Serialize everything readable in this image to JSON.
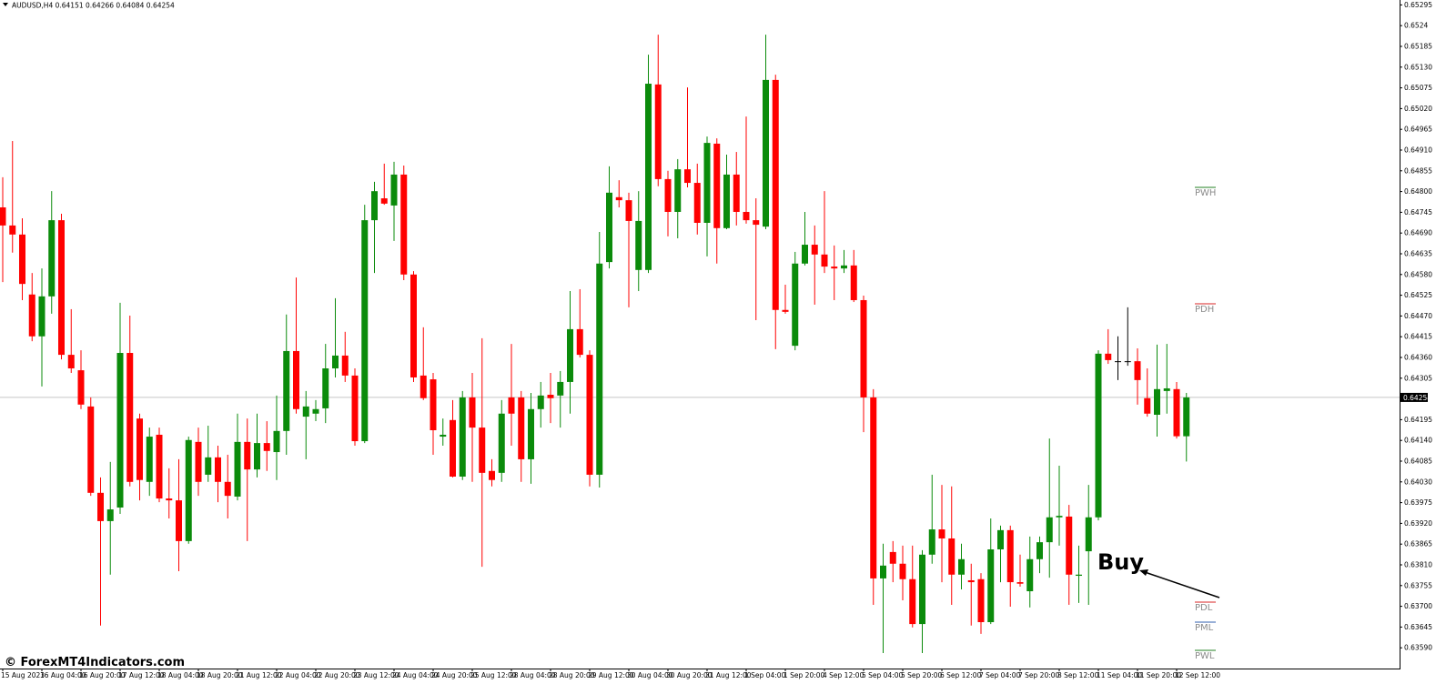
{
  "chart_data": {
    "type": "candlestick",
    "title": "AUDUSD,H4  0.64151 0.64266 0.64084 0.64254",
    "watermark": "© ForexMT4Indicators.com",
    "annotation": "Buy",
    "up_color": "#0b8b0b",
    "down_color": "#ff0000",
    "flat_color": "#000000",
    "grid": false,
    "current_price": 0.64254,
    "levels": [
      {
        "text": "PWH",
        "color": "#4f9a4f"
      },
      {
        "text": "PDH",
        "color": "#e05050"
      },
      {
        "text": "PDL",
        "color": "#e05050"
      },
      {
        "text": "PML",
        "color": "#5a7fbf"
      },
      {
        "text": "PWL",
        "color": "#4f9a4f"
      }
    ],
    "ylim": [
      0.63535,
      0.65308
    ],
    "yticks": [
      0.65295,
      0.6524,
      0.65185,
      {
        "value": 0.6513,
        "label": "0.65130"
      },
      0.65075,
      {
        "value": 0.6502,
        "label": "0.65020"
      },
      0.64965,
      {
        "value": 0.6491,
        "label": "0.64910"
      },
      0.64855,
      {
        "value": 0.648,
        "label": "0.64800"
      },
      0.64745,
      {
        "value": 0.6469,
        "label": "0.64690"
      },
      0.64635,
      {
        "value": 0.6458,
        "label": "0.64580"
      },
      0.64525,
      {
        "value": 0.6447,
        "label": "0.64470"
      },
      0.64415,
      {
        "value": 0.6436,
        "label": "0.64360"
      },
      0.64305,
      0.64195,
      {
        "value": 0.6414,
        "label": "0.64140"
      },
      0.64085,
      {
        "value": 0.6403,
        "label": "0.64030"
      },
      0.63975,
      {
        "value": 0.6392,
        "label": "0.63920"
      },
      0.63865,
      {
        "value": 0.6381,
        "label": "0.63810"
      },
      0.63755,
      {
        "value": 0.637,
        "label": "0.63700"
      },
      0.63645,
      {
        "value": 0.6359,
        "label": "0.63590"
      }
    ],
    "categories": [
      "15 Aug 2023",
      null,
      null,
      null,
      "16 Aug 04:00",
      null,
      null,
      null,
      "16 Aug 20:00",
      null,
      null,
      null,
      "17 Aug 12:00",
      null,
      null,
      null,
      "18 Aug 04:00",
      null,
      null,
      null,
      "18 Aug 20:00",
      null,
      null,
      null,
      "21 Aug 12:00",
      null,
      null,
      null,
      "22 Aug 04:00",
      null,
      null,
      null,
      "22 Aug 20:00",
      null,
      null,
      null,
      "23 Aug 12:00",
      null,
      null,
      null,
      "24 Aug 04:00",
      null,
      null,
      null,
      "24 Aug 20:00",
      null,
      null,
      null,
      "25 Aug 12:00",
      null,
      null,
      null,
      "28 Aug 04:00",
      null,
      null,
      null,
      "28 Aug 20:00",
      null,
      null,
      null,
      "29 Aug 12:00",
      null,
      null,
      null,
      "30 Aug 04:00",
      null,
      null,
      null,
      "30 Aug 20:00",
      null,
      null,
      null,
      "31 Aug 12:00",
      null,
      null,
      null,
      "1 Sep 04:00",
      null,
      null,
      null,
      "1 Sep 20:00",
      null,
      null,
      null,
      "4 Sep 12:00",
      null,
      null,
      null,
      "5 Sep 04:00",
      null,
      null,
      null,
      "5 Sep 20:00",
      null,
      null,
      null,
      "6 Sep 12:00",
      null,
      null,
      null,
      "7 Sep 04:00",
      null,
      null,
      null,
      "7 Sep 20:00",
      null,
      null,
      null,
      "8 Sep 12:00",
      null,
      null,
      null,
      "11 Sep 04:00",
      null,
      null,
      null,
      "11 Sep 20:00",
      null,
      null,
      null,
      "12 Sep 12:00",
      null
    ],
    "open": [
      0.64758,
      0.6471,
      0.64686,
      0.64527,
      0.64416,
      0.64522,
      0.64724,
      0.64367,
      0.64326,
      0.6423,
      0.64001,
      0.63926,
      0.63962,
      0.64372,
      0.64198,
      0.6403,
      0.64155,
      0.63986,
      0.63981,
      0.63873,
      0.64136,
      0.64049,
      0.64095,
      0.6403,
      0.63991,
      0.64136,
      0.64063,
      0.64133,
      0.64109,
      0.64165,
      0.64377,
      0.64203,
      0.64211,
      0.64225,
      0.64331,
      0.64365,
      0.64312,
      0.64138,
      0.64724,
      0.64782,
      0.64763,
      0.64845,
      0.6458,
      0.64312,
      0.64302,
      0.6415,
      0.64194,
      0.64044,
      0.64254,
      0.64174,
      0.64059,
      0.64054,
      0.64254,
      0.64254,
      0.6409,
      0.64223,
      0.64261,
      0.64259,
      0.64295,
      0.64435,
      0.64367,
      0.64049,
      0.64613,
      0.64785,
      0.64777,
      0.64592,
      0.64592,
      0.65084,
      0.64833,
      0.64746,
      0.64859,
      0.64823,
      0.64717,
      0.64927,
      0.64703,
      0.64845,
      0.64746,
      0.64724,
      0.64707,
      0.65096,
      0.64486,
      0.64391,
      0.64609,
      0.64659,
      0.64633,
      0.64601,
      0.64596,
      0.64604,
      0.64512,
      0.64254,
      0.63774,
      0.63844,
      0.63813,
      0.63772,
      0.63653,
      0.63837,
      0.63904,
      0.6388,
      0.63784,
      0.63769,
      0.63772,
      0.63658,
      0.63851,
      0.63902,
      0.63764,
      0.6374,
      0.63825,
      0.6387,
      0.63936,
      0.63938,
      0.63781,
      0.63846,
      0.63936,
      0.6437,
      0.6435,
      0.6435,
      0.6435,
      0.64252,
      0.64208,
      0.64271,
      0.64276,
      0.64151
    ],
    "high": [
      0.64838,
      0.64934,
      0.64729,
      0.64584,
      0.64596,
      0.64801,
      0.64741,
      0.64488,
      0.64379,
      0.64254,
      0.64042,
      0.64083,
      0.64505,
      0.64471,
      0.64211,
      0.64174,
      0.64174,
      0.64066,
      0.6409,
      0.6415,
      0.64174,
      0.64179,
      0.64126,
      0.64102,
      0.64211,
      0.64198,
      0.64211,
      0.64191,
      0.64259,
      0.64474,
      0.64572,
      0.64271,
      0.64247,
      0.64396,
      0.64517,
      0.64428,
      0.64331,
      0.64765,
      0.64826,
      0.64874,
      0.64879,
      0.64869,
      0.64589,
      0.6444,
      0.64319,
      0.64198,
      0.64247,
      0.64271,
      0.64319,
      0.64411,
      0.6409,
      0.64247,
      0.64396,
      0.64271,
      0.64266,
      0.64295,
      0.64319,
      0.64324,
      0.64536,
      0.64541,
      0.64379,
      0.64693,
      0.64867,
      0.6483,
      0.64797,
      0.64801,
      0.65163,
      0.65216,
      0.64855,
      0.64886,
      0.65076,
      0.64874,
      0.64946,
      0.64941,
      0.64898,
      0.64905,
      0.64999,
      0.64782,
      0.65216,
      0.6511,
      0.64553,
      0.6464,
      0.64746,
      0.6471,
      0.64801,
      0.64657,
      0.64645,
      0.64645,
      0.64524,
      0.64276,
      0.63866,
      0.63873,
      0.63861,
      0.63861,
      0.63849,
      0.64049,
      0.64022,
      0.64018,
      0.63866,
      0.63813,
      0.63788,
      0.63933,
      0.63914,
      0.63914,
      0.63837,
      0.63885,
      0.63885,
      0.64145,
      0.64073,
      0.63969,
      0.63861,
      0.64022,
      0.64379,
      0.64435,
      0.64416,
      0.64493,
      0.64384,
      0.64331,
      0.64394,
      0.64396,
      0.64295,
      0.64266
    ],
    "low": [
      0.6456,
      0.64638,
      0.64512,
      0.64403,
      0.64283,
      0.64476,
      0.64355,
      0.64319,
      0.64223,
      0.63993,
      0.63649,
      0.63784,
      0.63945,
      0.64018,
      0.63981,
      0.63993,
      0.63976,
      0.63933,
      0.63793,
      0.63866,
      0.63993,
      0.6403,
      0.63976,
      0.63933,
      0.63981,
      0.63873,
      0.64042,
      0.64059,
      0.64035,
      0.64102,
      0.64211,
      0.6409,
      0.64191,
      0.64186,
      0.64307,
      0.64295,
      0.64126,
      0.64133,
      0.64584,
      0.64765,
      0.64669,
      0.64565,
      0.64295,
      0.64247,
      0.64102,
      0.64126,
      0.64042,
      0.64035,
      0.6403,
      0.63805,
      0.64018,
      0.6403,
      0.64126,
      0.6403,
      0.64025,
      0.64174,
      0.64186,
      0.64174,
      0.64211,
      0.6436,
      0.64018,
      0.64015,
      0.64596,
      0.64758,
      0.64493,
      0.64536,
      0.64584,
      0.64814,
      0.64681,
      0.64676,
      0.64811,
      0.64686,
      0.64628,
      0.64609,
      0.647,
      0.6471,
      0.64715,
      0.64459,
      0.647,
      0.64382,
      0.64476,
      0.64379,
      0.64604,
      0.645,
      0.64584,
      0.64512,
      0.64584,
      0.64507,
      0.64162,
      0.63704,
      0.63576,
      0.63764,
      0.63716,
      0.63644,
      0.63576,
      0.63813,
      0.63764,
      0.63704,
      0.63745,
      0.63649,
      0.63627,
      0.63653,
      0.63764,
      0.63699,
      0.63752,
      0.63697,
      0.63788,
      0.63776,
      0.63861,
      0.63704,
      0.63709,
      0.63704,
      0.63928,
      0.64343,
      0.643,
      0.64338,
      0.64235,
      0.64203,
      0.6415,
      0.64211,
      0.64145,
      0.64084
    ],
    "close": [
      0.6471,
      0.64686,
      0.64555,
      0.64416,
      0.64522,
      0.64724,
      0.64367,
      0.64331,
      0.64235,
      0.64001,
      0.63926,
      0.63957,
      0.64372,
      0.6403,
      0.64035,
      0.6415,
      0.63986,
      0.63981,
      0.63873,
      0.64141,
      0.6403,
      0.64095,
      0.6403,
      0.63993,
      0.64136,
      0.64063,
      0.64133,
      0.64112,
      0.64165,
      0.64377,
      0.64223,
      0.6423,
      0.64223,
      0.64331,
      0.64365,
      0.64312,
      0.64138,
      0.64724,
      0.64801,
      0.64768,
      0.64845,
      0.6458,
      0.64307,
      0.64252,
      0.64167,
      0.64155,
      0.64044,
      0.64254,
      0.64174,
      0.64054,
      0.64035,
      0.64211,
      0.64211,
      0.6409,
      0.64223,
      0.64259,
      0.64252,
      0.64295,
      0.64435,
      0.64367,
      0.64049,
      0.64609,
      0.64797,
      0.64777,
      0.64722,
      0.64722,
      0.65086,
      0.64833,
      0.64746,
      0.64859,
      0.64823,
      0.64717,
      0.64929,
      0.64703,
      0.64845,
      0.64746,
      0.64724,
      0.64712,
      0.65096,
      0.64486,
      0.64481,
      0.64609,
      0.64659,
      0.64633,
      0.64601,
      0.64596,
      0.64604,
      0.64512,
      0.64254,
      0.63774,
      0.63808,
      0.63813,
      0.63772,
      0.63653,
      0.63837,
      0.63904,
      0.6388,
      0.63784,
      0.63825,
      0.63764,
      0.63658,
      0.63851,
      0.63902,
      0.63764,
      0.6376,
      0.63825,
      0.6387,
      0.63936,
      0.6394,
      0.63784,
      0.63784,
      0.63936,
      0.6437,
      0.64353,
      0.6435,
      0.6435,
      0.643,
      0.64211,
      0.64276,
      0.64278,
      0.64151,
      0.64254
    ]
  }
}
